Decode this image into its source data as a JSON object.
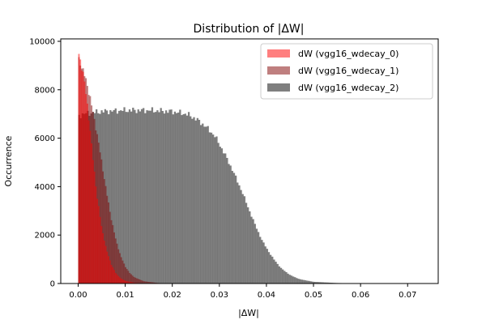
{
  "chart_data": {
    "type": "histogram",
    "title": "Distribution of |ΔW|",
    "xlabel": "|ΔW|",
    "ylabel": "Occurrence",
    "xlim": [
      -0.0037,
      0.0765
    ],
    "ylim": [
      0,
      10100
    ],
    "xticks": [
      0.0,
      0.01,
      0.02,
      0.03,
      0.04,
      0.05,
      0.06,
      0.07
    ],
    "xtick_labels": [
      "0.00",
      "0.01",
      "0.02",
      "0.03",
      "0.04",
      "0.05",
      "0.06",
      "0.07"
    ],
    "yticks": [
      0,
      2000,
      4000,
      6000,
      8000,
      10000
    ],
    "ytick_labels": [
      "0",
      "2000",
      "4000",
      "6000",
      "8000",
      "10000"
    ],
    "grid": false,
    "legend_position": "top-right",
    "series": [
      {
        "name": "dW (vgg16_wdecay_0)",
        "color": "#ff0000",
        "alpha": 0.5,
        "bin_width": 0.0003,
        "bin_start": 0.0,
        "x_end": 0.015,
        "curve": [
          [
            0.0,
            9600
          ],
          [
            0.0005,
            9200
          ],
          [
            0.001,
            8700
          ],
          [
            0.0015,
            8100
          ],
          [
            0.002,
            7300
          ],
          [
            0.0025,
            6400
          ],
          [
            0.003,
            5400
          ],
          [
            0.0035,
            4500
          ],
          [
            0.004,
            3600
          ],
          [
            0.005,
            2300
          ],
          [
            0.006,
            1400
          ],
          [
            0.007,
            800
          ],
          [
            0.008,
            420
          ],
          [
            0.009,
            220
          ],
          [
            0.01,
            110
          ],
          [
            0.012,
            30
          ],
          [
            0.015,
            0
          ]
        ]
      },
      {
        "name": "dW (vgg16_wdecay_1)",
        "color": "#800000",
        "alpha": 0.5,
        "bin_width": 0.0003,
        "bin_start": 0.0,
        "x_end": 0.02,
        "curve": [
          [
            0.0,
            9300
          ],
          [
            0.0005,
            9100
          ],
          [
            0.001,
            8800
          ],
          [
            0.0015,
            8500
          ],
          [
            0.002,
            8150
          ],
          [
            0.0025,
            7700
          ],
          [
            0.003,
            7200
          ],
          [
            0.004,
            6200
          ],
          [
            0.005,
            5000
          ],
          [
            0.006,
            3800
          ],
          [
            0.007,
            2700
          ],
          [
            0.008,
            1800
          ],
          [
            0.009,
            1150
          ],
          [
            0.01,
            700
          ],
          [
            0.011,
            420
          ],
          [
            0.012,
            250
          ],
          [
            0.014,
            90
          ],
          [
            0.017,
            20
          ],
          [
            0.02,
            0
          ]
        ]
      },
      {
        "name": "dW (vgg16_wdecay_2)",
        "color": "#000000",
        "alpha": 0.5,
        "bin_width": 0.00037,
        "bin_start": 0.0,
        "x_end": 0.073,
        "curve": [
          [
            0.0,
            6900
          ],
          [
            0.001,
            7000
          ],
          [
            0.003,
            7050
          ],
          [
            0.005,
            7100
          ],
          [
            0.01,
            7150
          ],
          [
            0.015,
            7150
          ],
          [
            0.02,
            7100
          ],
          [
            0.023,
            7000
          ],
          [
            0.025,
            6800
          ],
          [
            0.027,
            6500
          ],
          [
            0.029,
            6100
          ],
          [
            0.031,
            5400
          ],
          [
            0.033,
            4600
          ],
          [
            0.035,
            3700
          ],
          [
            0.037,
            2700
          ],
          [
            0.039,
            1800
          ],
          [
            0.041,
            1150
          ],
          [
            0.043,
            650
          ],
          [
            0.045,
            350
          ],
          [
            0.047,
            180
          ],
          [
            0.05,
            70
          ],
          [
            0.055,
            20
          ],
          [
            0.06,
            5
          ],
          [
            0.073,
            0
          ]
        ]
      }
    ]
  }
}
